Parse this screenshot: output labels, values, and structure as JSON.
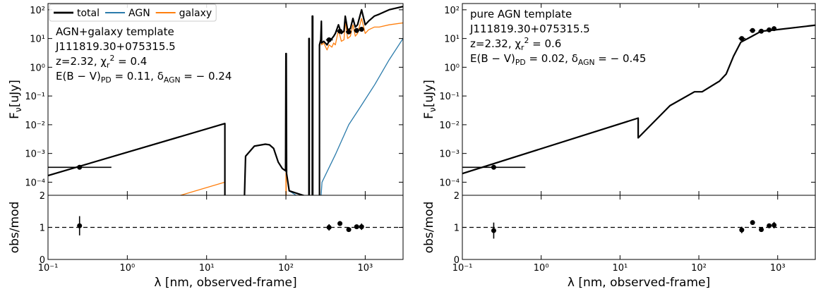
{
  "chart_data": [
    {
      "type": "line",
      "xscale": "log",
      "yscale": "log",
      "legend": "upper left",
      "xlim": [
        0.1,
        3000
      ],
      "ylim": [
        3.5e-05,
        165
      ],
      "xticks": [
        0.1,
        1,
        10,
        100,
        1000
      ],
      "yticks": [
        {
          "value": 0.0001,
          "label": "10⁻⁴"
        },
        {
          "value": 0.001,
          "label": "10⁻³"
        },
        {
          "value": 0.01,
          "label": "10⁻²"
        },
        {
          "value": 0.1,
          "label": "10⁻¹"
        },
        {
          "value": 1,
          "label": "10⁰"
        },
        {
          "value": 10,
          "label": "10¹"
        },
        {
          "value": 100,
          "label": "10²"
        }
      ],
      "ylabel": [
        {
          "t": "F"
        },
        {
          "t": "ν",
          "s": "sub"
        },
        {
          "t": "[uJy]"
        }
      ],
      "annotations": [
        [
          {
            "t": "AGN+galaxy template"
          }
        ],
        [
          {
            "t": "J111819.30+075315.5"
          }
        ],
        [
          {
            "t": "z=2.32, χ"
          },
          {
            "t": "r",
            "s": "sub"
          },
          {
            "t": "2",
            "s": "sup"
          },
          {
            "t": " = 0.4"
          }
        ],
        [
          {
            "t": "E(B − V)"
          },
          {
            "t": "PD",
            "s": "sub"
          },
          {
            "t": " = 0.11,  δ"
          },
          {
            "t": "AGN",
            "s": "sub"
          },
          {
            "t": " = − 0.24"
          }
        ]
      ],
      "series": [
        {
          "name": "total",
          "color": "#000000",
          "width": 2.2,
          "x": [
            0.1,
            17,
            17,
            30,
            31,
            40,
            55,
            62,
            70,
            80,
            90,
            99,
            100,
            101,
            102,
            110,
            195,
            195,
            197,
            197,
            215,
            215,
            218,
            218,
            265,
            265,
            275,
            280,
            282,
            300,
            330,
            350,
            380,
            400,
            420,
            460,
            500,
            540,
            560,
            600,
            650,
            700,
            750,
            800,
            900,
            1000,
            1100,
            1300,
            1500,
            2000,
            3000
          ],
          "values": [
            0.00017,
            0.011,
            3e-05,
            3e-05,
            0.0008,
            0.0018,
            0.0021,
            0.002,
            0.0015,
            0.0005,
            0.0003,
            0.00025,
            3,
            3,
            0.0002,
            5e-05,
            3e-05,
            10,
            10,
            3e-05,
            3e-05,
            60,
            60,
            3e-05,
            3e-05,
            6,
            9,
            40,
            7,
            8,
            6,
            8,
            10,
            12,
            15,
            30,
            15,
            18,
            60,
            20,
            22,
            50,
            25,
            30,
            100,
            30,
            40,
            60,
            70,
            100,
            130
          ]
        },
        {
          "name": "AGN",
          "color": "#2b7bab",
          "width": 1.3,
          "x": [
            0.1,
            17,
            17,
            30,
            31,
            40,
            55,
            62,
            70,
            80,
            90,
            99,
            102,
            110,
            270,
            285,
            427,
            620,
            890,
            1320,
            2000,
            3000
          ],
          "values": [
            0.00017,
            0.011,
            3e-05,
            3e-05,
            0.0008,
            0.0018,
            0.0021,
            0.002,
            0.0015,
            0.0005,
            0.0003,
            0.00025,
            0.0002,
            5e-05,
            1e-05,
            0.0001,
            0.001,
            0.01,
            0.046,
            0.25,
            1.8,
            10
          ]
        },
        {
          "name": "galaxy",
          "color": "#ff7f0e",
          "width": 1.3,
          "x": [
            4.7,
            17,
            30,
            100,
            100,
            101,
            101,
            195,
            195,
            197,
            197,
            215,
            215,
            218,
            218,
            265,
            265,
            275,
            280,
            282,
            300,
            330,
            350,
            380,
            400,
            420,
            460,
            500,
            540,
            560,
            600,
            650,
            700,
            750,
            800,
            900,
            1000,
            1100,
            1300,
            1500,
            2000,
            3000
          ],
          "values": [
            3.5e-05,
            0.0001,
            null,
            3e-05,
            3,
            3,
            3e-05,
            3e-05,
            10,
            10,
            3e-05,
            3e-05,
            60,
            60,
            3e-05,
            3e-05,
            5,
            8,
            40,
            6,
            7,
            4,
            6,
            5,
            7,
            6,
            20,
            8,
            9,
            40,
            10,
            12,
            30,
            12,
            15,
            50,
            15,
            20,
            25,
            25,
            30,
            35
          ]
        }
      ],
      "points": {
        "x": [
          0.25,
          350,
          480,
          620,
          780,
          900
        ],
        "values": [
          0.00033,
          9,
          18,
          17,
          19,
          21
        ],
        "xmin": [
          0.1,
          320,
          440,
          570,
          720,
          850
        ],
        "xmax": [
          0.63,
          390,
          520,
          670,
          840,
          950
        ]
      }
    },
    {
      "type": "errorbar",
      "xscale": "log",
      "xlim": [
        0.1,
        3000
      ],
      "ylim": [
        0,
        2
      ],
      "xticks": [
        {
          "value": 0.1,
          "label": "10⁻¹"
        },
        {
          "value": 1,
          "label": "10⁰"
        },
        {
          "value": 10,
          "label": "10¹"
        },
        {
          "value": 100,
          "label": "10²"
        },
        {
          "value": 1000,
          "label": "10³"
        }
      ],
      "yticks": [
        0,
        1,
        2
      ],
      "xlabel": "λ [nm, observed-frame]",
      "ylabel": "obs/mod",
      "hline": 1,
      "x": [
        0.25,
        350,
        480,
        620,
        780,
        900
      ],
      "values": [
        1.05,
        1.0,
        1.12,
        0.93,
        1.02,
        1.02
      ],
      "errors": [
        0.3,
        0.1,
        0.05,
        0.05,
        0.05,
        0.1
      ]
    },
    {
      "type": "line",
      "xscale": "log",
      "yscale": "log",
      "xlim": [
        0.1,
        3000
      ],
      "ylim": [
        3.5e-05,
        165
      ],
      "xticks": [
        0.1,
        1,
        10,
        100,
        1000
      ],
      "yticks": [
        {
          "value": 0.0001,
          "label": "10⁻⁴"
        },
        {
          "value": 0.001,
          "label": "10⁻³"
        },
        {
          "value": 0.01,
          "label": "10⁻²"
        },
        {
          "value": 0.1,
          "label": "10⁻¹"
        },
        {
          "value": 1,
          "label": "10⁰"
        },
        {
          "value": 10,
          "label": "10¹"
        },
        {
          "value": 100,
          "label": "10²"
        }
      ],
      "ylabel": [
        {
          "t": "F"
        },
        {
          "t": "ν",
          "s": "sub"
        },
        {
          "t": "[uJy]"
        }
      ],
      "annotations": [
        [
          {
            "t": "pure AGN template"
          }
        ],
        [
          {
            "t": "J111819.30+075315.5"
          }
        ],
        [
          {
            "t": "z=2.32, χ"
          },
          {
            "t": "r",
            "s": "sub"
          },
          {
            "t": "2",
            "s": "sup"
          },
          {
            "t": " = 0.6"
          }
        ],
        [
          {
            "t": "E(B − V)"
          },
          {
            "t": "PD",
            "s": "sub"
          },
          {
            "t": " = 0.02,  δ"
          },
          {
            "t": "AGN",
            "s": "sub"
          },
          {
            "t": " = − 0.45"
          }
        ]
      ],
      "series": [
        {
          "color": "#000000",
          "width": 2.2,
          "x": [
            0.1,
            17,
            17,
            43,
            88,
            110,
            183,
            222,
            275,
            340,
            460,
            620,
            930,
            3000
          ],
          "values": [
            0.0002,
            0.017,
            0.0035,
            0.046,
            0.14,
            0.14,
            0.33,
            0.58,
            2.4,
            7.4,
            11.5,
            18,
            20,
            29
          ]
        }
      ],
      "points": {
        "x": [
          0.25,
          350,
          480,
          620,
          780,
          900
        ],
        "values": [
          0.00033,
          10,
          19,
          18,
          20,
          22
        ],
        "xmin": [
          0.1,
          320,
          440,
          570,
          720,
          850
        ],
        "xmax": [
          0.63,
          390,
          520,
          670,
          840,
          950
        ]
      }
    },
    {
      "type": "errorbar",
      "xscale": "log",
      "xlim": [
        0.1,
        3000
      ],
      "ylim": [
        0,
        2
      ],
      "xticks": [
        {
          "value": 0.1,
          "label": "10⁻¹"
        },
        {
          "value": 1,
          "label": "10⁰"
        },
        {
          "value": 10,
          "label": "10¹"
        },
        {
          "value": 100,
          "label": "10²"
        },
        {
          "value": 1000,
          "label": "10³"
        }
      ],
      "yticks": [
        0,
        1,
        2
      ],
      "xlabel": "λ [nm, observed-frame]",
      "ylabel": "obs/mod",
      "hline": 1,
      "x": [
        0.25,
        350,
        480,
        620,
        780,
        900
      ],
      "values": [
        0.9,
        0.92,
        1.15,
        0.93,
        1.05,
        1.07
      ],
      "errors": [
        0.25,
        0.1,
        0.05,
        0.05,
        0.05,
        0.1
      ]
    }
  ]
}
